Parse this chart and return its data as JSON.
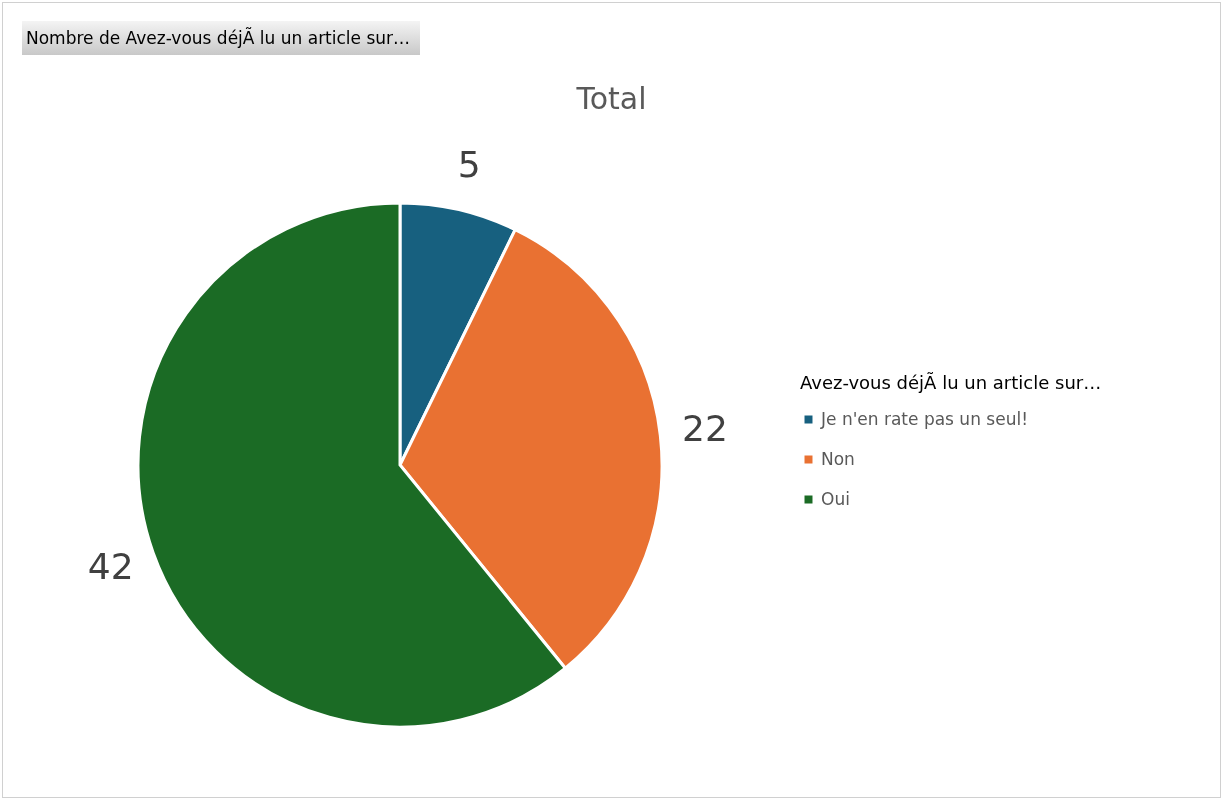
{
  "chart_data": {
    "type": "pie",
    "title": "Total",
    "annotations": [
      "Nombre de Avez-vous déjÃ  lu un article sur…"
    ],
    "legend_title": "Avez-vous déjÃ  lu un article sur…",
    "categories": [
      "Je n'en rate pas un seul!",
      "Non",
      "Oui"
    ],
    "values": [
      5,
      22,
      42
    ],
    "colors": [
      "#17607f",
      "#e97132",
      "#1b6b25"
    ],
    "legend": "right",
    "data_labels": true
  }
}
